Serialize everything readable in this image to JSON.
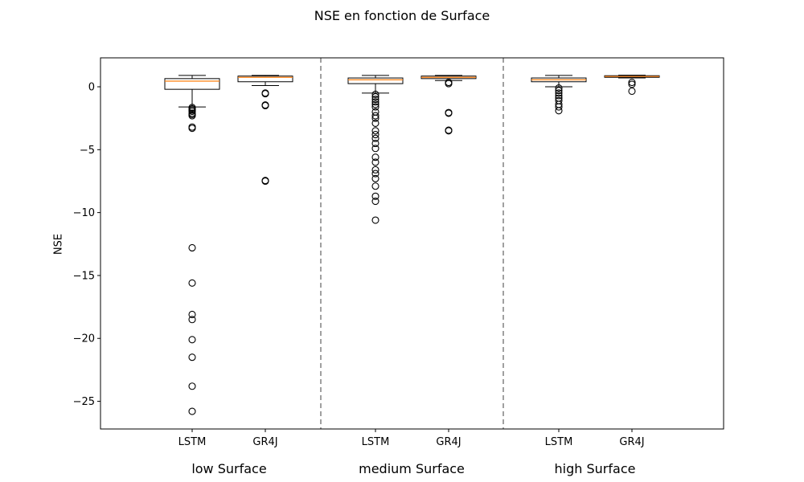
{
  "chart_data": {
    "type": "boxplot",
    "title": "NSE en fonction de Surface",
    "xlabel": "",
    "ylabel": "NSE",
    "ylim": [
      -27.2,
      2.3
    ],
    "yticks": [
      0,
      -5,
      -10,
      -15,
      -20,
      -25
    ],
    "ytick_labels": [
      "0",
      "−5",
      "−10",
      "−15",
      "−20",
      "−25"
    ],
    "median_color": "#ff7f0e",
    "separator_color": "#808080",
    "groups": [
      {
        "label": "low Surface",
        "boxes": [
          {
            "name": "LSTM",
            "whisker_low": -1.6,
            "q1": -0.2,
            "median": 0.45,
            "q3": 0.65,
            "whisker_high": 0.9,
            "outliers": [
              -1.65,
              -1.75,
              -1.85,
              -1.95,
              -2.1,
              -2.2,
              -2.3,
              -3.2,
              -3.3,
              -12.8,
              -15.6,
              -18.1,
              -18.5,
              -20.1,
              -21.5,
              -23.8,
              -25.8
            ]
          },
          {
            "name": "GR4J",
            "whisker_low": 0.1,
            "q1": 0.4,
            "median": 0.75,
            "q3": 0.85,
            "whisker_high": 0.9,
            "outliers": [
              -0.5,
              -0.55,
              -1.45,
              -1.5,
              -7.45,
              -7.5
            ]
          }
        ]
      },
      {
        "label": "medium Surface",
        "boxes": [
          {
            "name": "LSTM",
            "whisker_low": -0.5,
            "q1": 0.25,
            "median": 0.55,
            "q3": 0.7,
            "whisker_high": 0.9,
            "outliers": [
              -0.6,
              -0.8,
              -1.0,
              -1.2,
              -1.4,
              -1.6,
              -2.0,
              -2.3,
              -2.5,
              -2.9,
              -3.5,
              -3.8,
              -4.1,
              -4.5,
              -4.9,
              -5.6,
              -6.0,
              -6.6,
              -6.9,
              -7.3,
              -7.9,
              -8.7,
              -9.1,
              -10.6
            ]
          },
          {
            "name": "GR4J",
            "whisker_low": 0.5,
            "q1": 0.65,
            "median": 0.75,
            "q3": 0.85,
            "whisker_high": 0.9,
            "outliers": [
              0.25,
              0.35,
              -2.05,
              -2.1,
              -3.45,
              -3.5
            ]
          }
        ]
      },
      {
        "label": "high Surface",
        "boxes": [
          {
            "name": "LSTM",
            "whisker_low": 0.0,
            "q1": 0.4,
            "median": 0.55,
            "q3": 0.7,
            "whisker_high": 0.9,
            "outliers": [
              -0.1,
              -0.3,
              -0.5,
              -0.7,
              -0.9,
              -1.1,
              -1.4,
              -1.6,
              -1.9
            ]
          },
          {
            "name": "GR4J",
            "whisker_low": 0.7,
            "q1": 0.75,
            "median": 0.82,
            "q3": 0.88,
            "whisker_high": 0.92,
            "outliers": [
              0.35,
              0.2,
              -0.35
            ]
          }
        ]
      }
    ]
  }
}
